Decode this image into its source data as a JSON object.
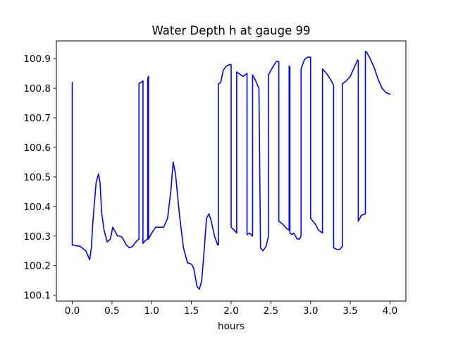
{
  "chart_data": {
    "type": "line",
    "title": "Water Depth h at gauge 99",
    "xlabel": "hours",
    "ylabel": "",
    "xlim": [
      -0.2,
      4.2
    ],
    "ylim": [
      100.08,
      100.96
    ],
    "xticks": [
      0.0,
      0.5,
      1.0,
      1.5,
      2.0,
      2.5,
      3.0,
      3.5,
      4.0
    ],
    "xtick_labels": [
      "0.0",
      "0.5",
      "1.0",
      "1.5",
      "2.0",
      "2.5",
      "3.0",
      "3.5",
      "4.0"
    ],
    "yticks": [
      100.1,
      100.2,
      100.3,
      100.4,
      100.5,
      100.6,
      100.7,
      100.8,
      100.9
    ],
    "ytick_labels": [
      "100.1",
      "100.2",
      "100.3",
      "100.4",
      "100.5",
      "100.6",
      "100.7",
      "100.8",
      "100.9"
    ],
    "grid": false,
    "series": [
      {
        "color": "#0000ff",
        "x": [
          0.0,
          0.0,
          0.0,
          0.1,
          0.17,
          0.22,
          0.24,
          0.26,
          0.3,
          0.33,
          0.35,
          0.37,
          0.4,
          0.44,
          0.48,
          0.51,
          0.54,
          0.57,
          0.6,
          0.63,
          0.68,
          0.72,
          0.76,
          0.8,
          0.84,
          0.84,
          0.89,
          0.89,
          0.92,
          0.95,
          0.95,
          0.96,
          0.96,
          1.0,
          1.05,
          1.1,
          1.15,
          1.2,
          1.24,
          1.27,
          1.3,
          1.35,
          1.4,
          1.45,
          1.5,
          1.53,
          1.57,
          1.6,
          1.63,
          1.66,
          1.69,
          1.72,
          1.75,
          1.79,
          1.83,
          1.84,
          1.84,
          1.87,
          1.9,
          1.94,
          1.98,
          2.0,
          2.0,
          2.04,
          2.07,
          2.07,
          2.15,
          2.2,
          2.2,
          2.23,
          2.25,
          2.27,
          2.27,
          2.3,
          2.35,
          2.37,
          2.4,
          2.44,
          2.47,
          2.47,
          2.52,
          2.57,
          2.6,
          2.6,
          2.65,
          2.7,
          2.73,
          2.73,
          2.74,
          2.74,
          2.77,
          2.79,
          2.8,
          2.83,
          2.86,
          2.88,
          2.88,
          2.92,
          2.96,
          3.0,
          3.0,
          3.06,
          3.1,
          3.15,
          3.15,
          3.2,
          3.25,
          3.29,
          3.29,
          3.33,
          3.37,
          3.4,
          3.4,
          3.45,
          3.5,
          3.55,
          3.59,
          3.6,
          3.6,
          3.64,
          3.69,
          3.69,
          3.71,
          3.75,
          3.8,
          3.85,
          3.9,
          3.95,
          4.0
        ],
        "y": [
          100.82,
          100.5,
          100.27,
          100.265,
          100.25,
          100.22,
          100.26,
          100.35,
          100.48,
          100.51,
          100.48,
          100.38,
          100.32,
          100.28,
          100.29,
          100.33,
          100.315,
          100.3,
          100.3,
          100.295,
          100.27,
          100.26,
          100.265,
          100.28,
          100.29,
          100.815,
          100.825,
          100.275,
          100.285,
          100.29,
          100.835,
          100.84,
          100.29,
          100.31,
          100.33,
          100.33,
          100.33,
          100.36,
          100.45,
          100.55,
          100.51,
          100.37,
          100.26,
          100.21,
          100.205,
          100.19,
          100.13,
          100.12,
          100.15,
          100.25,
          100.36,
          100.375,
          100.35,
          100.3,
          100.27,
          100.27,
          100.815,
          100.82,
          100.86,
          100.875,
          100.88,
          100.88,
          100.33,
          100.32,
          100.31,
          100.855,
          100.84,
          100.85,
          100.305,
          100.31,
          100.305,
          100.3,
          100.845,
          100.83,
          100.8,
          100.26,
          100.25,
          100.265,
          100.3,
          100.845,
          100.87,
          100.89,
          100.89,
          100.35,
          100.34,
          100.325,
          100.32,
          100.875,
          100.87,
          100.31,
          100.305,
          100.31,
          100.305,
          100.29,
          100.29,
          100.3,
          100.865,
          100.895,
          100.905,
          100.905,
          100.36,
          100.34,
          100.32,
          100.31,
          100.865,
          100.85,
          100.83,
          100.81,
          100.26,
          100.255,
          100.255,
          100.265,
          100.815,
          100.825,
          100.84,
          100.87,
          100.895,
          100.895,
          100.35,
          100.37,
          100.375,
          100.925,
          100.92,
          100.9,
          100.87,
          100.83,
          100.8,
          100.785,
          100.78
        ]
      }
    ]
  }
}
